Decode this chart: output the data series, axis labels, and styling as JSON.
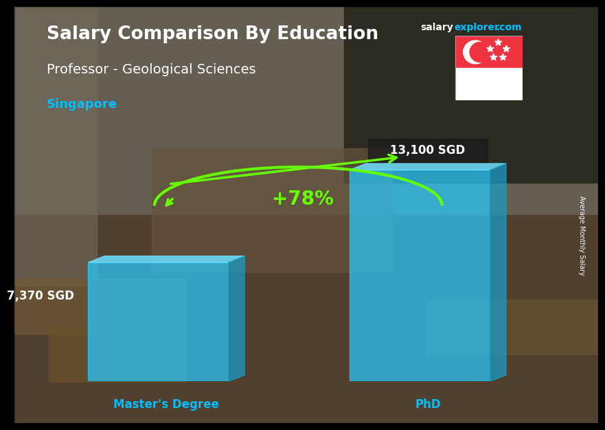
{
  "title_main": "Salary Comparison By Education",
  "title_sub": "Professor - Geological Sciences",
  "title_country": "Singapore",
  "site_salary": "salary",
  "site_explorer": "explorer",
  "site_com": ".com",
  "categories": [
    "Master's Degree",
    "PhD"
  ],
  "values": [
    7370,
    13100
  ],
  "value_labels": [
    "7,370 SGD",
    "13,100 SGD"
  ],
  "pct_change": "+78%",
  "bar_color_front": "#29C5F6",
  "bar_color_top": "#6DDFFF",
  "bar_color_side": "#1A9BC4",
  "bar_alpha": 0.75,
  "ylabel_rotated": "Average Monthly Salary",
  "title_color": "#FFFFFF",
  "subtitle_color": "#FFFFFF",
  "country_color": "#00BFFF",
  "value_label_color": "#FFFFFF",
  "xlabel_color": "#00BFFF",
  "pct_color": "#66FF00",
  "site_salary_color": "#FFFFFF",
  "site_explorer_color": "#00BFFF",
  "bg_warm": "#8B7355",
  "bg_overlay_alpha": 0.35,
  "flag_red": "#EF3340",
  "flag_white": "#FFFFFF"
}
